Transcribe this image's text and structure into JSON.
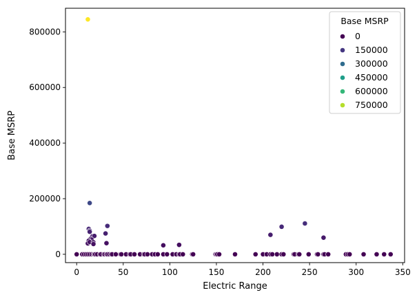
{
  "chart_data": {
    "type": "scatter",
    "xlabel": "Electric Range",
    "ylabel": "Base MSRP",
    "xlim": [
      -12,
      352
    ],
    "ylim": [
      -30000,
      885000
    ],
    "x_ticks": [
      0,
      50,
      100,
      150,
      200,
      250,
      300,
      350
    ],
    "y_ticks": [
      0,
      200000,
      400000,
      600000,
      800000
    ],
    "grid": false,
    "colormap": "viridis",
    "color_range": [
      0,
      845000
    ],
    "legend": {
      "title": "Base MSRP",
      "placement": "top-right",
      "entries": [
        {
          "label": "0",
          "value": 0,
          "color": "#440154"
        },
        {
          "label": "150000",
          "value": 150000,
          "color": "#453781"
        },
        {
          "label": "300000",
          "value": 300000,
          "color": "#2f6c8e"
        },
        {
          "label": "450000",
          "value": 450000,
          "color": "#1f9e89"
        },
        {
          "label": "600000",
          "value": 600000,
          "color": "#35b779"
        },
        {
          "label": "750000",
          "value": 750000,
          "color": "#b5de2b"
        }
      ]
    },
    "points": [
      {
        "x": 12,
        "y": 845000
      },
      {
        "x": 14,
        "y": 184400
      },
      {
        "x": 13,
        "y": 91250
      },
      {
        "x": 14,
        "y": 84900
      },
      {
        "x": 14,
        "y": 81000
      },
      {
        "x": 17,
        "y": 65000
      },
      {
        "x": 19,
        "y": 66000
      },
      {
        "x": 15,
        "y": 55700
      },
      {
        "x": 16,
        "y": 52900
      },
      {
        "x": 13,
        "y": 49000
      },
      {
        "x": 12,
        "y": 39000
      },
      {
        "x": 14,
        "y": 44000
      },
      {
        "x": 18,
        "y": 43000
      },
      {
        "x": 18,
        "y": 37000
      },
      {
        "x": 33,
        "y": 102000
      },
      {
        "x": 31,
        "y": 75000
      },
      {
        "x": 32,
        "y": 39995
      },
      {
        "x": 93,
        "y": 32250
      },
      {
        "x": 110,
        "y": 33950
      },
      {
        "x": 208,
        "y": 69900
      },
      {
        "x": 220,
        "y": 98950
      },
      {
        "x": 245,
        "y": 110950
      },
      {
        "x": 265,
        "y": 59900
      },
      {
        "x": 0,
        "y": 0
      },
      {
        "x": 6,
        "y": 0
      },
      {
        "x": 8,
        "y": 0
      },
      {
        "x": 10,
        "y": 0
      },
      {
        "x": 12,
        "y": 0
      },
      {
        "x": 14,
        "y": 0
      },
      {
        "x": 16,
        "y": 0
      },
      {
        "x": 18,
        "y": 0
      },
      {
        "x": 19,
        "y": 0
      },
      {
        "x": 20,
        "y": 0
      },
      {
        "x": 22,
        "y": 0
      },
      {
        "x": 25,
        "y": 0
      },
      {
        "x": 26,
        "y": 0
      },
      {
        "x": 29,
        "y": 0
      },
      {
        "x": 30,
        "y": 0
      },
      {
        "x": 32,
        "y": 0
      },
      {
        "x": 33,
        "y": 0
      },
      {
        "x": 35,
        "y": 0
      },
      {
        "x": 37,
        "y": 0
      },
      {
        "x": 38,
        "y": 0
      },
      {
        "x": 42,
        "y": 0
      },
      {
        "x": 47,
        "y": 0
      },
      {
        "x": 48,
        "y": 0
      },
      {
        "x": 53,
        "y": 0
      },
      {
        "x": 57,
        "y": 0
      },
      {
        "x": 58,
        "y": 0
      },
      {
        "x": 62,
        "y": 0
      },
      {
        "x": 68,
        "y": 0
      },
      {
        "x": 72,
        "y": 0
      },
      {
        "x": 73,
        "y": 0
      },
      {
        "x": 76,
        "y": 0
      },
      {
        "x": 81,
        "y": 0
      },
      {
        "x": 84,
        "y": 0
      },
      {
        "x": 87,
        "y": 0
      },
      {
        "x": 93,
        "y": 0
      },
      {
        "x": 97,
        "y": 0
      },
      {
        "x": 103,
        "y": 0
      },
      {
        "x": 107,
        "y": 0
      },
      {
        "x": 110,
        "y": 0
      },
      {
        "x": 111,
        "y": 0
      },
      {
        "x": 114,
        "y": 0
      },
      {
        "x": 124,
        "y": 0
      },
      {
        "x": 125,
        "y": 0
      },
      {
        "x": 149,
        "y": 0
      },
      {
        "x": 150,
        "y": 0
      },
      {
        "x": 151,
        "y": 0
      },
      {
        "x": 153,
        "y": 0
      },
      {
        "x": 170,
        "y": 0
      },
      {
        "x": 192,
        "y": 0
      },
      {
        "x": 200,
        "y": 0
      },
      {
        "x": 204,
        "y": 0
      },
      {
        "x": 208,
        "y": 0
      },
      {
        "x": 210,
        "y": 0
      },
      {
        "x": 215,
        "y": 0
      },
      {
        "x": 220,
        "y": 0
      },
      {
        "x": 222,
        "y": 0
      },
      {
        "x": 233,
        "y": 0
      },
      {
        "x": 234,
        "y": 0
      },
      {
        "x": 238,
        "y": 0
      },
      {
        "x": 239,
        "y": 0
      },
      {
        "x": 249,
        "y": 0
      },
      {
        "x": 258,
        "y": 0
      },
      {
        "x": 259,
        "y": 0
      },
      {
        "x": 265,
        "y": 0
      },
      {
        "x": 266,
        "y": 0
      },
      {
        "x": 270,
        "y": 0
      },
      {
        "x": 289,
        "y": 0
      },
      {
        "x": 291,
        "y": 0
      },
      {
        "x": 293,
        "y": 0
      },
      {
        "x": 308,
        "y": 0
      },
      {
        "x": 322,
        "y": 0
      },
      {
        "x": 330,
        "y": 0
      },
      {
        "x": 337,
        "y": 0
      }
    ]
  }
}
